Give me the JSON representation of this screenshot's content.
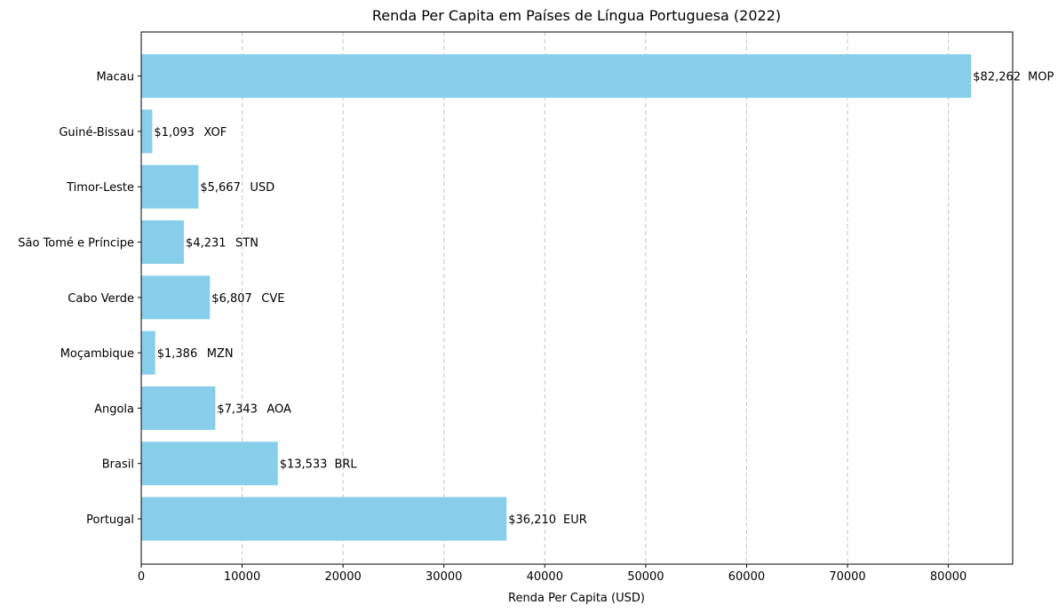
{
  "chart_data": {
    "type": "bar",
    "orientation": "horizontal",
    "title": "Renda Per Capita em Países de Língua Portuguesa (2022)",
    "xlabel": "Renda Per Capita (USD)",
    "ylabel": "",
    "xlim": [
      0,
      86375
    ],
    "x_ticks": [
      0,
      10000,
      20000,
      30000,
      40000,
      50000,
      60000,
      70000,
      80000
    ],
    "x_tick_labels": [
      "0",
      "10000",
      "20000",
      "30000",
      "40000",
      "50000",
      "60000",
      "70000",
      "80000"
    ],
    "grid": "x-dashed",
    "bar_color": "#87ceeb",
    "categories": [
      "Portugal",
      "Brasil",
      "Angola",
      "Moçambique",
      "Cabo Verde",
      "São Tomé e Príncipe",
      "Timor-Leste",
      "Guiné-Bissau",
      "Macau"
    ],
    "values": [
      36210,
      13533,
      7343,
      1386,
      6807,
      4231,
      5667,
      1093,
      82262
    ],
    "value_labels": [
      "$36,210",
      "$13,533",
      "$7,343",
      "$1,386",
      "$6,807",
      "$4,231",
      "$5,667",
      "$1,093",
      "$82,262"
    ],
    "currencies": [
      "EUR",
      "BRL",
      "AOA",
      "MZN",
      "CVE",
      "STN",
      "USD",
      "XOF",
      "MOP"
    ]
  }
}
